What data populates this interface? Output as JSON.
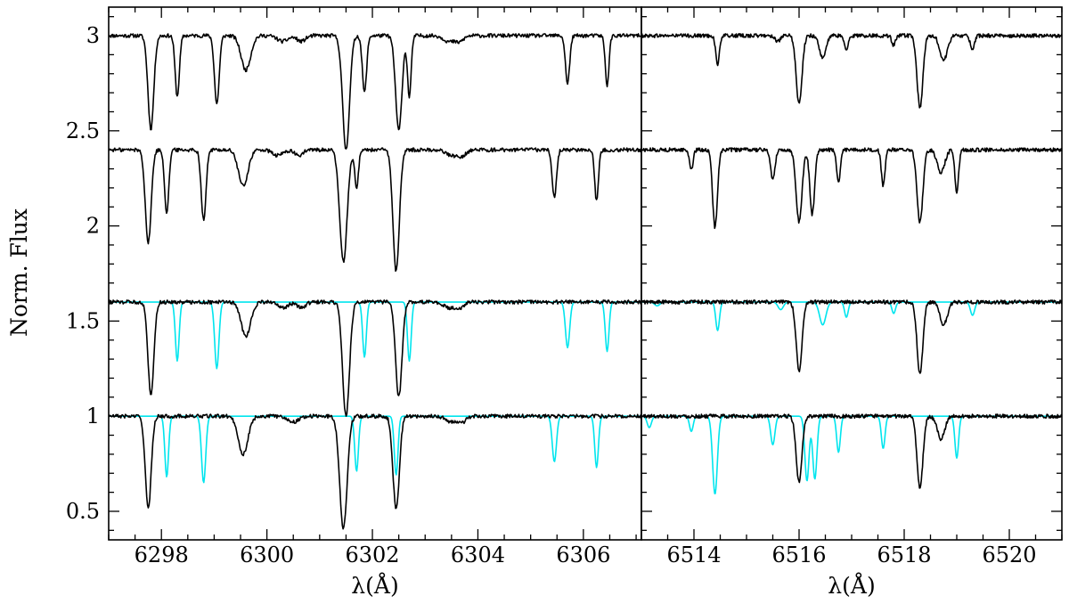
{
  "chart_data": {
    "type": "line",
    "ylabel": "Norm. Flux",
    "yticks": [
      {
        "v": 3,
        "label": "3"
      },
      {
        "v": 2.5,
        "label": "2.5"
      },
      {
        "v": 2,
        "label": "2"
      },
      {
        "v": 1.5,
        "label": "1.5"
      },
      {
        "v": 1,
        "label": "1"
      },
      {
        "v": 0.5,
        "label": "0.5"
      }
    ],
    "ylim": [
      0.35,
      3.15
    ],
    "colors": {
      "observed": "#000000",
      "model": "#00e5ee"
    },
    "panels": [
      {
        "xlabel": "λ(Å)",
        "xlim": [
          6297,
          6307.1
        ],
        "xticks": [
          {
            "v": 6298,
            "label": "6298"
          },
          {
            "v": 6300,
            "label": "6300"
          },
          {
            "v": 6302,
            "label": "6302"
          },
          {
            "v": 6304,
            "label": "6304"
          },
          {
            "v": 6306,
            "label": "6306"
          }
        ],
        "spectra": [
          {
            "offset": 3.0,
            "color": "black",
            "lines": [
              [
                6297.8,
                0.49,
                0.055
              ],
              [
                6298.3,
                0.32,
                0.04
              ],
              [
                6299.05,
                0.36,
                0.045
              ],
              [
                6299.6,
                0.18,
                0.09
              ],
              [
                6300.3,
                0.03,
                0.1
              ],
              [
                6300.65,
                0.03,
                0.08
              ],
              [
                6301.5,
                0.6,
                0.065
              ],
              [
                6301.85,
                0.3,
                0.04
              ],
              [
                6302.5,
                0.5,
                0.06
              ],
              [
                6302.7,
                0.32,
                0.035
              ],
              [
                6303.45,
                0.03,
                0.1
              ],
              [
                6303.65,
                0.03,
                0.08
              ],
              [
                6305.7,
                0.25,
                0.04
              ],
              [
                6306.45,
                0.26,
                0.035
              ]
            ]
          },
          {
            "offset": 2.4,
            "color": "black",
            "lines": [
              [
                6297.75,
                0.49,
                0.055
              ],
              [
                6298.1,
                0.33,
                0.04
              ],
              [
                6298.8,
                0.37,
                0.045
              ],
              [
                6299.55,
                0.19,
                0.09
              ],
              [
                6300.2,
                0.03,
                0.1
              ],
              [
                6300.6,
                0.03,
                0.08
              ],
              [
                6301.45,
                0.59,
                0.07
              ],
              [
                6301.7,
                0.2,
                0.035
              ],
              [
                6302.45,
                0.64,
                0.06
              ],
              [
                6303.5,
                0.03,
                0.1
              ],
              [
                6303.7,
                0.03,
                0.08
              ],
              [
                6305.45,
                0.25,
                0.04
              ],
              [
                6306.25,
                0.27,
                0.035
              ]
            ]
          },
          {
            "offset": 1.6,
            "color": "black",
            "lines": [
              [
                6297.8,
                0.49,
                0.055
              ],
              [
                6299.6,
                0.18,
                0.09
              ],
              [
                6300.3,
                0.03,
                0.1
              ],
              [
                6300.65,
                0.03,
                0.08
              ],
              [
                6301.5,
                0.6,
                0.065
              ],
              [
                6302.5,
                0.5,
                0.06
              ],
              [
                6303.45,
                0.03,
                0.1
              ],
              [
                6303.65,
                0.03,
                0.08
              ]
            ]
          },
          {
            "offset": 1.6,
            "color": "cyan",
            "lines": [
              [
                6298.3,
                0.31,
                0.035
              ],
              [
                6299.05,
                0.35,
                0.04
              ],
              [
                6301.85,
                0.29,
                0.035
              ],
              [
                6302.7,
                0.31,
                0.035
              ],
              [
                6305.7,
                0.24,
                0.04
              ],
              [
                6306.45,
                0.26,
                0.035
              ]
            ]
          },
          {
            "offset": 1.0,
            "color": "black",
            "lines": [
              [
                6297.75,
                0.49,
                0.055
              ],
              [
                6299.55,
                0.2,
                0.09
              ],
              [
                6300.5,
                0.03,
                0.1
              ],
              [
                6301.45,
                0.59,
                0.07
              ],
              [
                6302.45,
                0.49,
                0.06
              ],
              [
                6303.5,
                0.03,
                0.1
              ],
              [
                6303.7,
                0.03,
                0.08
              ]
            ]
          },
          {
            "offset": 1.0,
            "color": "cyan",
            "lines": [
              [
                6298.1,
                0.32,
                0.035
              ],
              [
                6298.8,
                0.35,
                0.04
              ],
              [
                6301.7,
                0.29,
                0.035
              ],
              [
                6302.45,
                0.31,
                0.035
              ],
              [
                6305.45,
                0.24,
                0.04
              ],
              [
                6306.25,
                0.27,
                0.035
              ]
            ]
          }
        ]
      },
      {
        "xlabel": "λ(Å)",
        "xlim": [
          6513,
          6521
        ],
        "xticks": [
          {
            "v": 6514,
            "label": "6514"
          },
          {
            "v": 6516,
            "label": "6516"
          },
          {
            "v": 6518,
            "label": "6518"
          },
          {
            "v": 6520,
            "label": "6520"
          }
        ],
        "spectra": [
          {
            "offset": 3.0,
            "color": "black",
            "lines": [
              [
                6514.45,
                0.15,
                0.035
              ],
              [
                6515.6,
                0.03,
                0.05
              ],
              [
                6516.0,
                0.36,
                0.055
              ],
              [
                6516.45,
                0.12,
                0.06
              ],
              [
                6516.9,
                0.08,
                0.035
              ],
              [
                6517.8,
                0.05,
                0.035
              ],
              [
                6518.3,
                0.38,
                0.055
              ],
              [
                6518.75,
                0.13,
                0.07
              ],
              [
                6519.3,
                0.07,
                0.04
              ]
            ]
          },
          {
            "offset": 2.4,
            "color": "black",
            "lines": [
              [
                6513.95,
                0.1,
                0.035
              ],
              [
                6514.4,
                0.41,
                0.045
              ],
              [
                6515.5,
                0.16,
                0.04
              ],
              [
                6516.0,
                0.38,
                0.055
              ],
              [
                6516.25,
                0.34,
                0.045
              ],
              [
                6516.75,
                0.17,
                0.035
              ],
              [
                6517.6,
                0.19,
                0.035
              ],
              [
                6518.3,
                0.38,
                0.055
              ],
              [
                6518.7,
                0.12,
                0.07
              ],
              [
                6519.0,
                0.22,
                0.035
              ]
            ]
          },
          {
            "offset": 1.6,
            "color": "black",
            "lines": [
              [
                6516.0,
                0.36,
                0.055
              ],
              [
                6518.3,
                0.38,
                0.055
              ],
              [
                6518.75,
                0.12,
                0.07
              ]
            ]
          },
          {
            "offset": 1.6,
            "color": "cyan",
            "lines": [
              [
                6513.3,
                0.02,
                0.05
              ],
              [
                6514.45,
                0.15,
                0.035
              ],
              [
                6515.65,
                0.04,
                0.05
              ],
              [
                6516.45,
                0.12,
                0.06
              ],
              [
                6516.9,
                0.08,
                0.035
              ],
              [
                6517.8,
                0.06,
                0.035
              ],
              [
                6519.3,
                0.07,
                0.04
              ]
            ]
          },
          {
            "offset": 1.0,
            "color": "black",
            "lines": [
              [
                6516.0,
                0.35,
                0.055
              ],
              [
                6518.3,
                0.38,
                0.055
              ],
              [
                6518.7,
                0.12,
                0.07
              ]
            ]
          },
          {
            "offset": 1.0,
            "color": "cyan",
            "lines": [
              [
                6513.15,
                0.06,
                0.04
              ],
              [
                6513.95,
                0.08,
                0.035
              ],
              [
                6514.4,
                0.41,
                0.045
              ],
              [
                6515.5,
                0.15,
                0.04
              ],
              [
                6516.15,
                0.34,
                0.04
              ],
              [
                6516.3,
                0.33,
                0.04
              ],
              [
                6516.75,
                0.19,
                0.035
              ],
              [
                6517.6,
                0.17,
                0.035
              ],
              [
                6519.0,
                0.22,
                0.035
              ]
            ]
          }
        ]
      }
    ]
  }
}
